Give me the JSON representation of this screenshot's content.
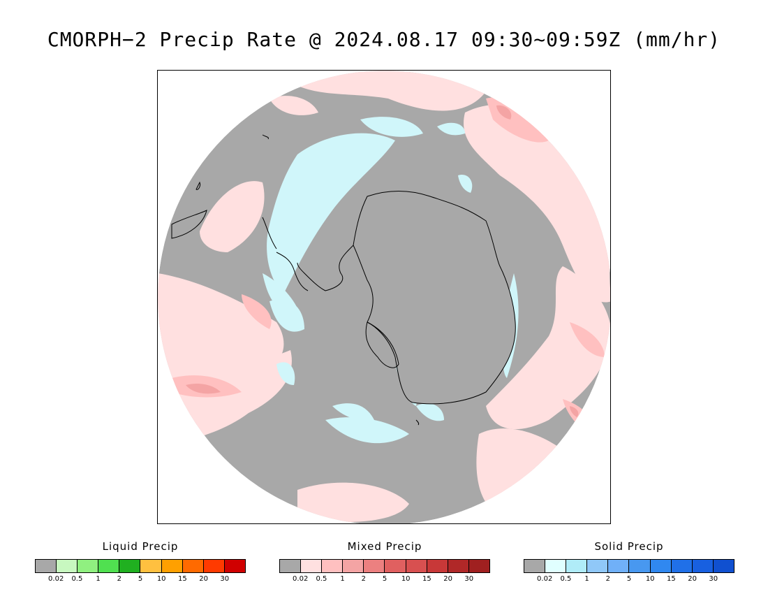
{
  "title": "CMORPH−2 Precip Rate @ 2024.08.17 09:30~09:59Z (mm/hr)",
  "map": {
    "projection": "south-polar-stereographic",
    "background_color": "#a8a8a8",
    "coastline_color": "#000000",
    "regions": {
      "mixed_light_color": "#ffe0e0",
      "mixed_mid_color": "#ffc0c0",
      "mixed_strong_color": "#f4a4a4",
      "solid_light_color": "#d0f6fa"
    }
  },
  "legends": [
    {
      "title": "Liquid Precip",
      "colors": [
        "#a8a8a8",
        "#c8f8c0",
        "#90f080",
        "#50e050",
        "#20b020",
        "#ffc040",
        "#ffa000",
        "#ff6a00",
        "#ff3a00",
        "#d00000"
      ],
      "ticks": [
        "0.02",
        "0.5",
        "1",
        "2",
        "5",
        "10",
        "15",
        "20",
        "30"
      ]
    },
    {
      "title": "Mixed Precip",
      "colors": [
        "#a8a8a8",
        "#ffe0e0",
        "#ffc0c0",
        "#f4a4a4",
        "#ec8080",
        "#e06060",
        "#d85050",
        "#c83838",
        "#b02828",
        "#a02020"
      ],
      "ticks": [
        "0.02",
        "0.5",
        "1",
        "2",
        "5",
        "10",
        "15",
        "20",
        "30"
      ]
    },
    {
      "title": "Solid Precip",
      "colors": [
        "#a8a8a8",
        "#e0ffff",
        "#b0ecf8",
        "#90c8f8",
        "#70b0f8",
        "#4898f0",
        "#3088f0",
        "#2070e8",
        "#1860e0",
        "#1050d0"
      ],
      "ticks": [
        "0.02",
        "0.5",
        "1",
        "2",
        "5",
        "10",
        "15",
        "20",
        "30"
      ]
    }
  ]
}
